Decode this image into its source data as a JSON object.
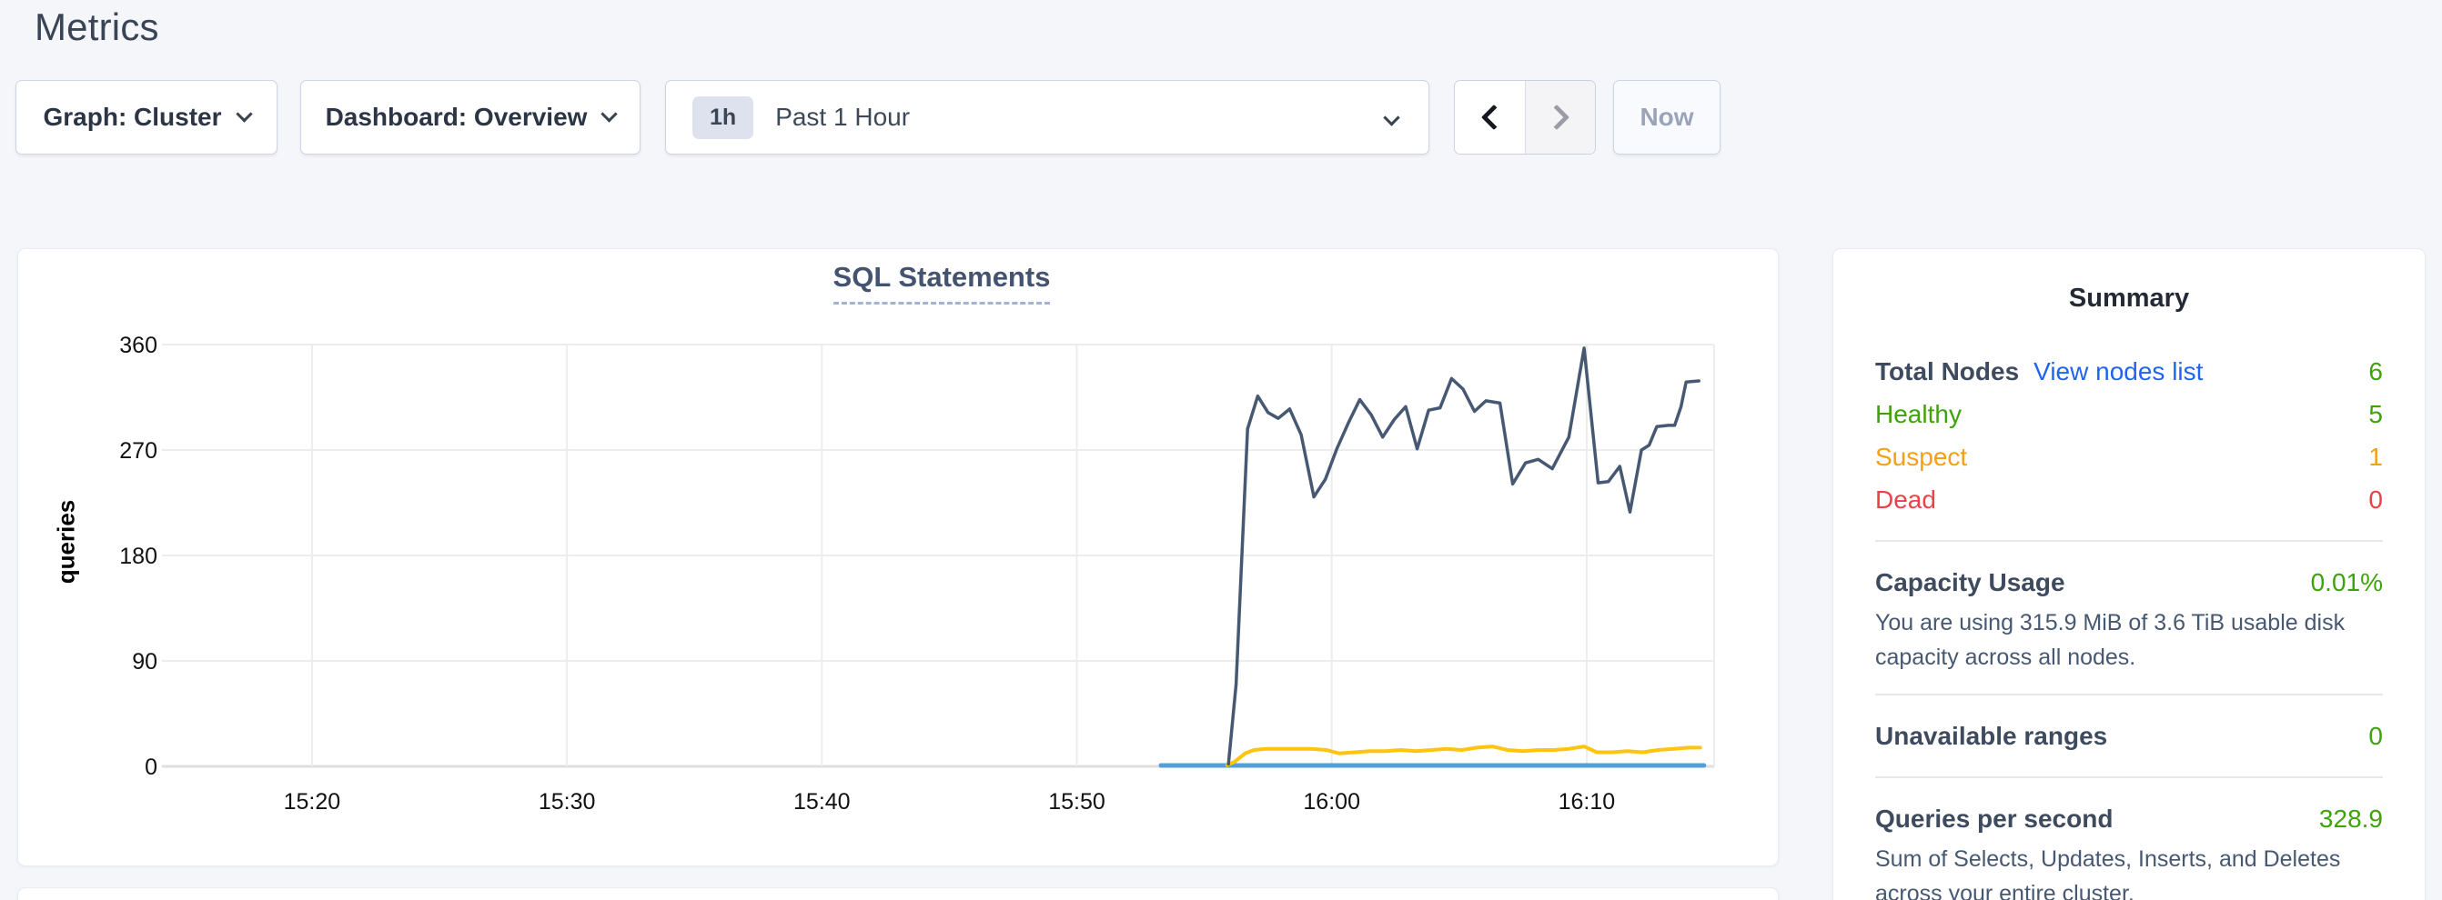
{
  "page": {
    "title": "Metrics",
    "background": "#f4f6fa"
  },
  "toolbar": {
    "graph_dropdown": {
      "text": "Graph: Cluster"
    },
    "dashboard_dropdown": {
      "text": "Dashboard: Overview"
    },
    "time_selector": {
      "badge": "1h",
      "label": "Past 1 Hour"
    },
    "now_button": {
      "label": "Now"
    }
  },
  "chart_data": {
    "type": "line",
    "title": "SQL Statements",
    "ylabel": "queries",
    "xlabel": "",
    "y_ticks": [
      0,
      90,
      180,
      270,
      360
    ],
    "y_range": [
      0,
      360
    ],
    "x_unit": "minutes after 15:00",
    "x_range": [
      14.4,
      75.0
    ],
    "x_ticks": [
      {
        "label": "15:20",
        "t": 20
      },
      {
        "label": "15:30",
        "t": 30
      },
      {
        "label": "15:40",
        "t": 40
      },
      {
        "label": "15:50",
        "t": 50
      },
      {
        "label": "16:00",
        "t": 60
      },
      {
        "label": "16:10",
        "t": 70
      }
    ],
    "grid": true,
    "legend": "none",
    "series": [
      {
        "name": "line-blue-flat",
        "color": "#549fd7",
        "width": 5,
        "points": [
          [
            53.3,
            0.8
          ],
          [
            74.6,
            0.8
          ]
        ]
      },
      {
        "name": "line-yellow",
        "color": "#ffc40c",
        "width": 4,
        "points": [
          [
            55.9,
            1
          ],
          [
            56.2,
            4
          ],
          [
            56.6,
            11
          ],
          [
            56.95,
            14
          ],
          [
            57.4,
            15
          ],
          [
            58.0,
            15
          ],
          [
            58.6,
            15
          ],
          [
            59.2,
            15
          ],
          [
            59.8,
            14
          ],
          [
            60.3,
            11
          ],
          [
            60.9,
            12
          ],
          [
            61.5,
            13
          ],
          [
            62.1,
            13
          ],
          [
            62.7,
            14
          ],
          [
            63.3,
            13
          ],
          [
            63.9,
            14
          ],
          [
            64.5,
            15
          ],
          [
            65.1,
            14
          ],
          [
            65.7,
            16
          ],
          [
            66.3,
            17
          ],
          [
            66.9,
            14
          ],
          [
            67.5,
            13
          ],
          [
            68.1,
            14
          ],
          [
            68.7,
            14
          ],
          [
            69.3,
            15
          ],
          [
            69.9,
            17
          ],
          [
            70.4,
            12
          ],
          [
            71.0,
            12
          ],
          [
            71.6,
            13
          ],
          [
            72.2,
            12
          ],
          [
            72.8,
            14
          ],
          [
            73.4,
            15
          ],
          [
            74.0,
            16
          ],
          [
            74.45,
            16
          ]
        ]
      },
      {
        "name": "line-dark-navy",
        "color": "#475872",
        "width": 3.5,
        "points": [
          [
            55.95,
            2
          ],
          [
            56.25,
            70
          ],
          [
            56.7,
            288
          ],
          [
            57.1,
            316
          ],
          [
            57.5,
            302
          ],
          [
            57.9,
            297
          ],
          [
            58.35,
            305
          ],
          [
            58.8,
            283
          ],
          [
            59.3,
            230
          ],
          [
            59.75,
            245
          ],
          [
            60.2,
            271
          ],
          [
            60.65,
            293
          ],
          [
            61.1,
            313
          ],
          [
            61.55,
            300
          ],
          [
            62.0,
            281
          ],
          [
            62.45,
            296
          ],
          [
            62.9,
            307
          ],
          [
            63.35,
            271
          ],
          [
            63.8,
            304
          ],
          [
            64.25,
            306
          ],
          [
            64.7,
            331
          ],
          [
            65.15,
            322
          ],
          [
            65.6,
            303
          ],
          [
            66.05,
            312
          ],
          [
            66.6,
            310
          ],
          [
            67.1,
            241
          ],
          [
            67.6,
            259
          ],
          [
            68.1,
            262
          ],
          [
            68.65,
            254
          ],
          [
            69.3,
            281
          ],
          [
            69.9,
            357
          ],
          [
            70.45,
            242
          ],
          [
            70.85,
            243
          ],
          [
            71.3,
            256
          ],
          [
            71.7,
            217
          ],
          [
            72.15,
            270
          ],
          [
            72.45,
            274
          ],
          [
            72.75,
            290
          ],
          [
            73.2,
            291
          ],
          [
            73.45,
            291
          ],
          [
            73.7,
            307
          ],
          [
            73.9,
            328
          ],
          [
            74.4,
            329
          ]
        ]
      }
    ],
    "gridline_color": "#ededed",
    "zero_line_color": "#dfdfdf",
    "tick_text_color": "#111111"
  },
  "summary": {
    "heading": "Summary",
    "total_nodes": {
      "label": "Total Nodes",
      "link": "View nodes list",
      "value": "6"
    },
    "healthy": {
      "label": "Healthy",
      "value": "5"
    },
    "suspect": {
      "label": "Suspect",
      "value": "1"
    },
    "dead": {
      "label": "Dead",
      "value": "0"
    },
    "capacity": {
      "label": "Capacity Usage",
      "value": "0.01%",
      "desc": "You are using 315.9 MiB of 3.6 TiB usable disk capacity across all nodes."
    },
    "unavailable": {
      "label": "Unavailable ranges",
      "value": "0"
    },
    "qps": {
      "label": "Queries per second",
      "value": "328.9",
      "desc": "Sum of Selects, Updates, Inserts, and Deletes across your entire cluster."
    },
    "colors": {
      "green": "#3ea30b",
      "orange": "#f2a113",
      "red": "#ee4049",
      "link": "#2065f0"
    }
  }
}
